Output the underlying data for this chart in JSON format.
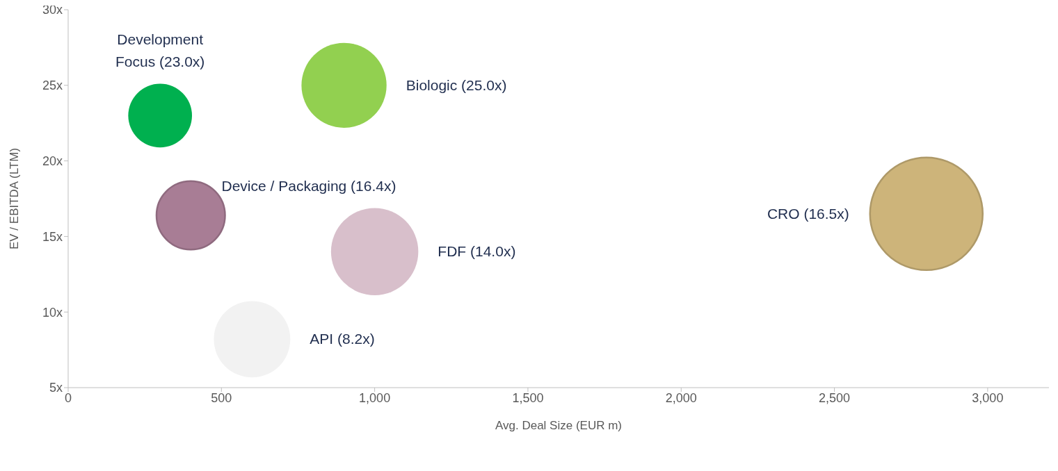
{
  "chart_data": {
    "type": "bubble",
    "xlabel": "Avg. Deal Size (EUR m)",
    "ylabel": "EV / EBITDA (LTM)",
    "xlim": [
      0,
      3200
    ],
    "xticks": [
      0,
      500,
      {
        "value": 1000,
        "label": "1,000"
      },
      {
        "value": 1500,
        "label": "1,500"
      },
      {
        "value": 2000,
        "label": "2,000"
      },
      {
        "value": 2500,
        "label": "2,500"
      },
      {
        "value": 3000,
        "label": "3,000"
      }
    ],
    "ylim": [
      5,
      30
    ],
    "yticks": [
      {
        "value": 5,
        "label": "5x"
      },
      {
        "value": 10,
        "label": "10x"
      },
      {
        "value": 15,
        "label": "15x"
      },
      {
        "value": 20,
        "label": "20x"
      },
      {
        "value": 25,
        "label": "25x"
      },
      {
        "value": 30,
        "label": "30x"
      }
    ],
    "grid": false,
    "legend": false,
    "series": [
      {
        "name": "Development Focus (23.0x)",
        "color": "#00b04f",
        "x": [
          300
        ],
        "values": [
          23.0
        ],
        "sizes": [
          0.32
        ]
      },
      {
        "name": "Biologic (25.0x)",
        "color": "#92d050",
        "x": [
          900
        ],
        "values": [
          25.0
        ],
        "sizes": [
          0.57
        ]
      },
      {
        "name": "Device / Packaging (16.4x)",
        "color": "#a87d95",
        "x": [
          400
        ],
        "values": [
          16.4
        ],
        "sizes": [
          0.37
        ]
      },
      {
        "name": "FDF (14.0x)",
        "color": "#d8bfcb",
        "x": [
          1000
        ],
        "values": [
          14.0
        ],
        "sizes": [
          0.6
        ]
      },
      {
        "name": "API (8.2x)",
        "color": "#f2f2f2",
        "x": [
          600
        ],
        "values": [
          8.2
        ],
        "sizes": [
          0.46
        ]
      },
      {
        "name": "CRO (16.5x)",
        "color": "#cdb47a",
        "x": [
          2800
        ],
        "values": [
          16.5
        ],
        "sizes": [
          1
        ]
      }
    ]
  }
}
